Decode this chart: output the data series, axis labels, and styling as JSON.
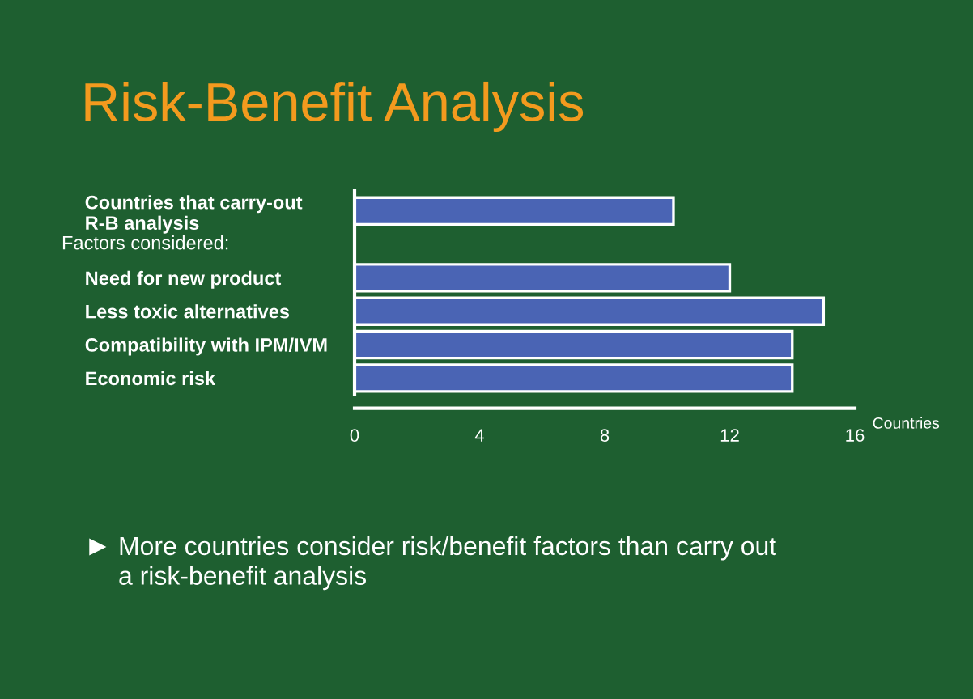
{
  "chart_data": {
    "type": "bar",
    "orientation": "horizontal",
    "title": "Risk-Benefit Analysis",
    "xlabel": "Countries",
    "categories": [
      "Countries that carry-out\nR-B analysis",
      null,
      "Need for new product",
      "Less toxic alternatives",
      "Compatibility with IPM/IVM",
      "Economic risk"
    ],
    "values": [
      10.2,
      null,
      12,
      15,
      14,
      14
    ],
    "color": "#4a64b4",
    "xlim": [
      0,
      16
    ],
    "xticks": [
      0,
      4,
      8,
      12,
      16
    ],
    "grid": false,
    "legend": false,
    "annotations": [
      "Factors considered:",
      "More countries consider risk/benefit factors than carry out\na risk-benefit analysis"
    ]
  }
}
